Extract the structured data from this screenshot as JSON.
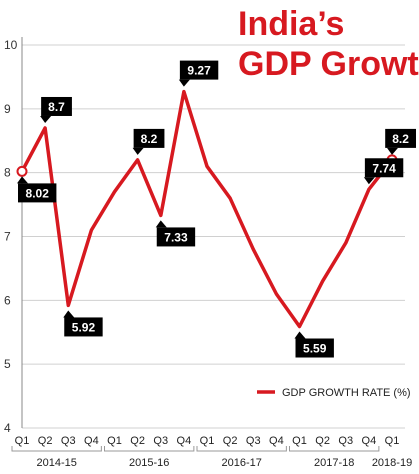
{
  "title_line1": "India’s",
  "title_line2": "GDP Growth",
  "legend_label": "GDP GROWTH RATE (%)",
  "colors": {
    "line": "#d71920",
    "label_bg": "#000000",
    "grid": "#d0d0d0",
    "axis": "#888888"
  },
  "chart_data": {
    "type": "line",
    "title": "India’s GDP Growth",
    "ylim": [
      4,
      10
    ],
    "yticks": [
      "4",
      "5",
      "6",
      "7",
      "8",
      "9",
      "10"
    ],
    "quarters": [
      "Q1",
      "Q2",
      "Q3",
      "Q4",
      "Q1",
      "Q2",
      "Q3",
      "Q4",
      "Q1",
      "Q2",
      "Q3",
      "Q4",
      "Q1",
      "Q2",
      "Q3",
      "Q4",
      "Q1"
    ],
    "fiscal_years": [
      {
        "label": "2014-15",
        "span": [
          0,
          3
        ]
      },
      {
        "label": "2015-16",
        "span": [
          4,
          7
        ]
      },
      {
        "label": "2016-17",
        "span": [
          8,
          11
        ]
      },
      {
        "label": "2017-18",
        "span": [
          12,
          15
        ]
      },
      {
        "label": "2018-19",
        "span": [
          16,
          16
        ]
      }
    ],
    "series": [
      {
        "name": "GDP GROWTH RATE (%)",
        "values": [
          8.02,
          8.7,
          5.92,
          7.1,
          7.7,
          8.2,
          7.33,
          9.27,
          8.1,
          7.6,
          6.8,
          6.1,
          5.59,
          6.3,
          6.9,
          7.74,
          8.2
        ]
      }
    ],
    "data_labels": [
      {
        "index": 0,
        "text": "8.02",
        "pos": "below"
      },
      {
        "index": 1,
        "text": "8.7",
        "pos": "above"
      },
      {
        "index": 2,
        "text": "5.92",
        "pos": "below"
      },
      {
        "index": 5,
        "text": "8.2",
        "pos": "above"
      },
      {
        "index": 6,
        "text": "7.33",
        "pos": "below"
      },
      {
        "index": 7,
        "text": "9.27",
        "pos": "above"
      },
      {
        "index": 12,
        "text": "5.59",
        "pos": "below"
      },
      {
        "index": 15,
        "text": "7.74",
        "pos": "above"
      },
      {
        "index": 16,
        "text": "8.2",
        "pos": "above"
      }
    ],
    "open_markers": [
      0,
      16
    ]
  }
}
